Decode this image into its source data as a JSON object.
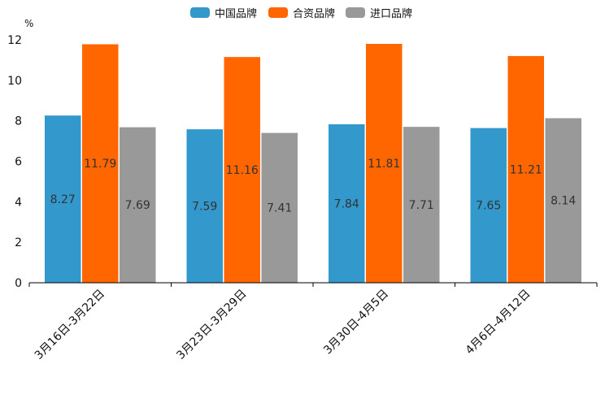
{
  "chart_data": {
    "type": "bar",
    "title": "",
    "xlabel": "",
    "ylabel": "%",
    "ylim": [
      0,
      12
    ],
    "yticks": [
      0,
      2,
      4,
      6,
      8,
      10,
      12
    ],
    "grid": false,
    "legend_position": "top-center",
    "categories": [
      "3月16日-3月22日",
      "3月23日-3月29日",
      "3月30日-4月5日",
      "4月6日-4月12日"
    ],
    "series": [
      {
        "name": "中国品牌",
        "color": "#3399cc",
        "values": [
          8.27,
          7.59,
          7.84,
          7.65
        ],
        "labels": [
          "8.27",
          "7.59",
          "7.84",
          "7.65"
        ]
      },
      {
        "name": "合资品牌",
        "color": "#ff6600",
        "values": [
          11.79,
          11.16,
          11.81,
          11.21
        ],
        "labels": [
          "11.79",
          "11.16",
          "11.81",
          "11.21"
        ]
      },
      {
        "name": "进口品牌",
        "color": "#999999",
        "values": [
          7.69,
          7.41,
          7.71,
          8.14
        ],
        "labels": [
          "7.69",
          "7.41",
          "7.71",
          "8.14"
        ]
      }
    ]
  }
}
